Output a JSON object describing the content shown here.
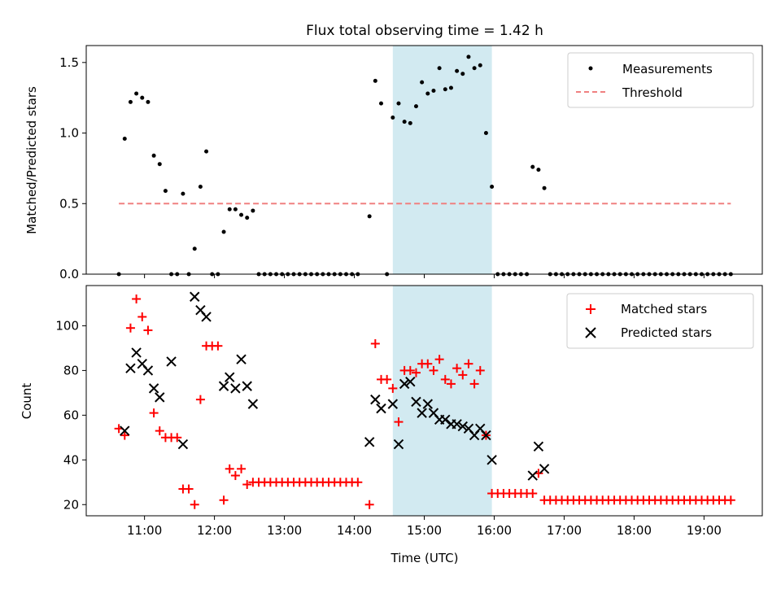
{
  "chart_data": [
    {
      "type": "scatter",
      "title": "Flux total observing time = 1.42 h",
      "xlabel": "",
      "ylabel": "Matched/Predicted stars",
      "xlim": [
        "10:10",
        "19:50"
      ],
      "ylim": [
        0,
        1.62
      ],
      "y_ticks": [
        0.0,
        0.5,
        1.0,
        1.5
      ],
      "y_tick_labels": [
        "0.0",
        "0.5",
        "1.0",
        "1.5"
      ],
      "shaded_interval": {
        "start": "14:33",
        "end": "15:58",
        "color": "#add8e6"
      },
      "legend": {
        "position": "top-right",
        "entries": [
          "Measurements",
          "Threshold"
        ]
      },
      "series": [
        {
          "name": "Measurements",
          "marker": "dot",
          "color": "#000000",
          "points": [
            [
              "10:38",
              0.0
            ],
            [
              "10:43",
              0.96
            ],
            [
              "10:48",
              1.22
            ],
            [
              "10:53",
              1.28
            ],
            [
              "10:58",
              1.25
            ],
            [
              "11:03",
              1.22
            ],
            [
              "11:08",
              0.84
            ],
            [
              "11:13",
              0.78
            ],
            [
              "11:18",
              0.59
            ],
            [
              "11:23",
              0.0
            ],
            [
              "11:28",
              0.0
            ],
            [
              "11:33",
              0.57
            ],
            [
              "11:38",
              0.0
            ],
            [
              "11:43",
              0.18
            ],
            [
              "11:48",
              0.62
            ],
            [
              "11:53",
              0.87
            ],
            [
              "11:58",
              0.0
            ],
            [
              "12:03",
              0.0
            ],
            [
              "12:08",
              0.3
            ],
            [
              "12:13",
              0.46
            ],
            [
              "12:18",
              0.46
            ],
            [
              "12:23",
              0.42
            ],
            [
              "12:28",
              0.4
            ],
            [
              "12:33",
              0.45
            ],
            [
              "12:38",
              0.0
            ],
            [
              "12:43",
              0.0
            ],
            [
              "12:48",
              0.0
            ],
            [
              "12:53",
              0.0
            ],
            [
              "12:58",
              0.0
            ],
            [
              "13:03",
              0.0
            ],
            [
              "13:08",
              0.0
            ],
            [
              "13:13",
              0.0
            ],
            [
              "13:18",
              0.0
            ],
            [
              "13:23",
              0.0
            ],
            [
              "13:28",
              0.0
            ],
            [
              "13:33",
              0.0
            ],
            [
              "13:38",
              0.0
            ],
            [
              "13:43",
              0.0
            ],
            [
              "13:48",
              0.0
            ],
            [
              "13:53",
              0.0
            ],
            [
              "13:58",
              0.0
            ],
            [
              "14:03",
              0.0
            ],
            [
              "14:13",
              0.41
            ],
            [
              "14:18",
              1.37
            ],
            [
              "14:23",
              1.21
            ],
            [
              "14:28",
              0.0
            ],
            [
              "14:33",
              1.11
            ],
            [
              "14:38",
              1.21
            ],
            [
              "14:43",
              1.08
            ],
            [
              "14:48",
              1.07
            ],
            [
              "14:53",
              1.19
            ],
            [
              "14:58",
              1.36
            ],
            [
              "15:03",
              1.28
            ],
            [
              "15:08",
              1.3
            ],
            [
              "15:13",
              1.46
            ],
            [
              "15:18",
              1.31
            ],
            [
              "15:23",
              1.32
            ],
            [
              "15:28",
              1.44
            ],
            [
              "15:33",
              1.42
            ],
            [
              "15:38",
              1.54
            ],
            [
              "15:43",
              1.46
            ],
            [
              "15:48",
              1.48
            ],
            [
              "15:53",
              1.0
            ],
            [
              "15:58",
              0.62
            ],
            [
              "16:03",
              0.0
            ],
            [
              "16:08",
              0.0
            ],
            [
              "16:13",
              0.0
            ],
            [
              "16:18",
              0.0
            ],
            [
              "16:23",
              0.0
            ],
            [
              "16:28",
              0.0
            ],
            [
              "16:33",
              0.76
            ],
            [
              "16:38",
              0.74
            ],
            [
              "16:43",
              0.61
            ],
            [
              "16:48",
              0.0
            ],
            [
              "16:53",
              0.0
            ],
            [
              "16:58",
              0.0
            ],
            [
              "17:03",
              0.0
            ],
            [
              "17:08",
              0.0
            ],
            [
              "17:13",
              0.0
            ],
            [
              "17:18",
              0.0
            ],
            [
              "17:23",
              0.0
            ],
            [
              "17:28",
              0.0
            ],
            [
              "17:33",
              0.0
            ],
            [
              "17:38",
              0.0
            ],
            [
              "17:43",
              0.0
            ],
            [
              "17:48",
              0.0
            ],
            [
              "17:53",
              0.0
            ],
            [
              "17:58",
              0.0
            ],
            [
              "18:03",
              0.0
            ],
            [
              "18:08",
              0.0
            ],
            [
              "18:13",
              0.0
            ],
            [
              "18:18",
              0.0
            ],
            [
              "18:23",
              0.0
            ],
            [
              "18:28",
              0.0
            ],
            [
              "18:33",
              0.0
            ],
            [
              "18:38",
              0.0
            ],
            [
              "18:43",
              0.0
            ],
            [
              "18:48",
              0.0
            ],
            [
              "18:53",
              0.0
            ],
            [
              "18:58",
              0.0
            ],
            [
              "19:03",
              0.0
            ],
            [
              "19:08",
              0.0
            ],
            [
              "19:13",
              0.0
            ],
            [
              "19:18",
              0.0
            ],
            [
              "19:23",
              0.0
            ]
          ]
        },
        {
          "name": "Threshold",
          "marker": "dashed-line",
          "color": "#f08080",
          "points": [
            [
              "10:38",
              0.5
            ],
            [
              "19:23",
              0.5
            ]
          ]
        }
      ]
    },
    {
      "type": "scatter",
      "title": "",
      "xlabel": "Time (UTC)",
      "ylabel": "Count",
      "xlim": [
        "10:10",
        "19:50"
      ],
      "ylim": [
        15,
        118
      ],
      "x_ticks": [
        "11:00",
        "12:00",
        "13:00",
        "14:00",
        "15:00",
        "16:00",
        "17:00",
        "18:00",
        "19:00"
      ],
      "y_ticks": [
        20,
        40,
        60,
        80,
        100
      ],
      "y_tick_labels": [
        "20",
        "40",
        "60",
        "80",
        "100"
      ],
      "shaded_interval": {
        "start": "14:33",
        "end": "15:58",
        "color": "#add8e6"
      },
      "legend": {
        "position": "top-right",
        "entries": [
          "Matched stars",
          "Predicted stars"
        ]
      },
      "series": [
        {
          "name": "Matched stars",
          "marker": "plus",
          "color": "#ff0000",
          "points": [
            [
              "10:38",
              54
            ],
            [
              "10:43",
              51
            ],
            [
              "10:48",
              99
            ],
            [
              "10:53",
              112
            ],
            [
              "10:58",
              104
            ],
            [
              "11:03",
              98
            ],
            [
              "11:08",
              61
            ],
            [
              "11:13",
              53
            ],
            [
              "11:18",
              50
            ],
            [
              "11:23",
              50
            ],
            [
              "11:28",
              50
            ],
            [
              "11:33",
              27
            ],
            [
              "11:38",
              27
            ],
            [
              "11:43",
              20
            ],
            [
              "11:48",
              67
            ],
            [
              "11:53",
              91
            ],
            [
              "11:58",
              91
            ],
            [
              "12:03",
              91
            ],
            [
              "12:08",
              22
            ],
            [
              "12:13",
              36
            ],
            [
              "12:18",
              33
            ],
            [
              "12:23",
              36
            ],
            [
              "12:28",
              29
            ],
            [
              "12:33",
              30
            ],
            [
              "12:38",
              30
            ],
            [
              "12:43",
              30
            ],
            [
              "12:48",
              30
            ],
            [
              "12:53",
              30
            ],
            [
              "12:58",
              30
            ],
            [
              "13:03",
              30
            ],
            [
              "13:08",
              30
            ],
            [
              "13:13",
              30
            ],
            [
              "13:18",
              30
            ],
            [
              "13:23",
              30
            ],
            [
              "13:28",
              30
            ],
            [
              "13:33",
              30
            ],
            [
              "13:38",
              30
            ],
            [
              "13:43",
              30
            ],
            [
              "13:48",
              30
            ],
            [
              "13:53",
              30
            ],
            [
              "13:58",
              30
            ],
            [
              "14:03",
              30
            ],
            [
              "14:13",
              20
            ],
            [
              "14:18",
              92
            ],
            [
              "14:23",
              76
            ],
            [
              "14:28",
              76
            ],
            [
              "14:33",
              72
            ],
            [
              "14:38",
              57
            ],
            [
              "14:43",
              80
            ],
            [
              "14:48",
              80
            ],
            [
              "14:53",
              79
            ],
            [
              "14:58",
              83
            ],
            [
              "15:03",
              83
            ],
            [
              "15:08",
              80
            ],
            [
              "15:13",
              85
            ],
            [
              "15:18",
              76
            ],
            [
              "15:23",
              74
            ],
            [
              "15:28",
              81
            ],
            [
              "15:33",
              78
            ],
            [
              "15:38",
              83
            ],
            [
              "15:43",
              74
            ],
            [
              "15:48",
              80
            ],
            [
              "15:53",
              51
            ],
            [
              "15:58",
              25
            ],
            [
              "16:03",
              25
            ],
            [
              "16:08",
              25
            ],
            [
              "16:13",
              25
            ],
            [
              "16:18",
              25
            ],
            [
              "16:23",
              25
            ],
            [
              "16:28",
              25
            ],
            [
              "16:33",
              25
            ],
            [
              "16:38",
              34
            ],
            [
              "16:43",
              22
            ],
            [
              "16:48",
              22
            ],
            [
              "16:53",
              22
            ],
            [
              "16:58",
              22
            ],
            [
              "17:03",
              22
            ],
            [
              "17:08",
              22
            ],
            [
              "17:13",
              22
            ],
            [
              "17:18",
              22
            ],
            [
              "17:23",
              22
            ],
            [
              "17:28",
              22
            ],
            [
              "17:33",
              22
            ],
            [
              "17:38",
              22
            ],
            [
              "17:43",
              22
            ],
            [
              "17:48",
              22
            ],
            [
              "17:53",
              22
            ],
            [
              "17:58",
              22
            ],
            [
              "18:03",
              22
            ],
            [
              "18:08",
              22
            ],
            [
              "18:13",
              22
            ],
            [
              "18:18",
              22
            ],
            [
              "18:23",
              22
            ],
            [
              "18:28",
              22
            ],
            [
              "18:33",
              22
            ],
            [
              "18:38",
              22
            ],
            [
              "18:43",
              22
            ],
            [
              "18:48",
              22
            ],
            [
              "18:53",
              22
            ],
            [
              "18:58",
              22
            ],
            [
              "19:03",
              22
            ],
            [
              "19:08",
              22
            ],
            [
              "19:13",
              22
            ],
            [
              "19:18",
              22
            ],
            [
              "19:23",
              22
            ]
          ]
        },
        {
          "name": "Predicted stars",
          "marker": "x",
          "color": "#000000",
          "points": [
            [
              "10:43",
              53
            ],
            [
              "10:48",
              81
            ],
            [
              "10:53",
              88
            ],
            [
              "10:58",
              83
            ],
            [
              "11:03",
              80
            ],
            [
              "11:08",
              72
            ],
            [
              "11:13",
              68
            ],
            [
              "11:23",
              84
            ],
            [
              "11:33",
              47
            ],
            [
              "11:43",
              113
            ],
            [
              "11:48",
              107
            ],
            [
              "11:53",
              104
            ],
            [
              "12:08",
              73
            ],
            [
              "12:13",
              77
            ],
            [
              "12:18",
              72
            ],
            [
              "12:23",
              85
            ],
            [
              "12:28",
              73
            ],
            [
              "12:33",
              65
            ],
            [
              "14:13",
              48
            ],
            [
              "14:18",
              67
            ],
            [
              "14:23",
              63
            ],
            [
              "14:33",
              65
            ],
            [
              "14:38",
              47
            ],
            [
              "14:43",
              74
            ],
            [
              "14:48",
              75
            ],
            [
              "14:53",
              66
            ],
            [
              "14:58",
              61
            ],
            [
              "15:03",
              65
            ],
            [
              "15:08",
              61
            ],
            [
              "15:13",
              58
            ],
            [
              "15:18",
              58
            ],
            [
              "15:23",
              56
            ],
            [
              "15:28",
              56
            ],
            [
              "15:33",
              55
            ],
            [
              "15:38",
              54
            ],
            [
              "15:43",
              51
            ],
            [
              "15:48",
              54
            ],
            [
              "15:53",
              51
            ],
            [
              "15:58",
              40
            ],
            [
              "16:33",
              33
            ],
            [
              "16:38",
              46
            ],
            [
              "16:43",
              36
            ]
          ]
        }
      ]
    }
  ]
}
